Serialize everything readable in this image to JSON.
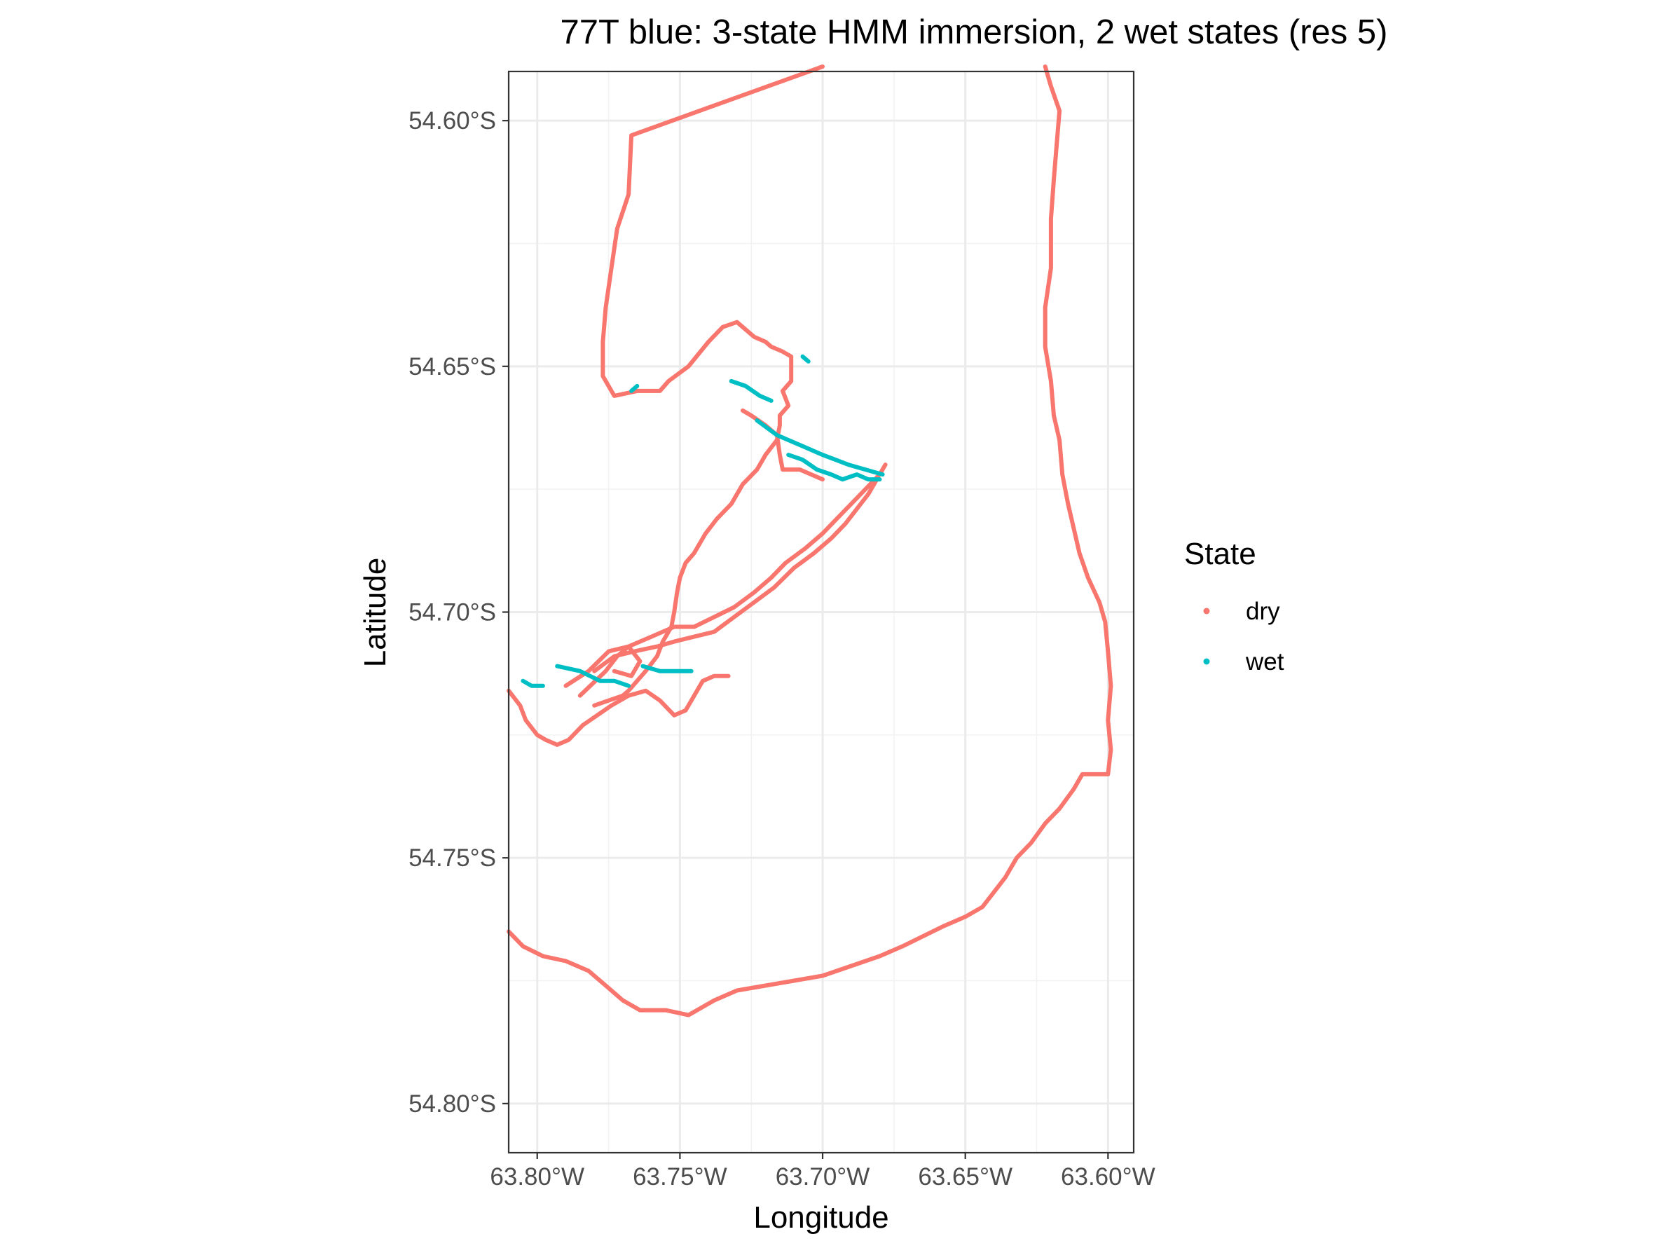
{
  "chart_data": {
    "type": "scatter",
    "title": "77T blue: 3-state HMM immersion, 2 wet states (res 5)",
    "xlabel": "Longitude",
    "ylabel": "Latitude",
    "xlim": [
      -63.81,
      -63.591
    ],
    "ylim": [
      -54.81,
      -54.59
    ],
    "x_ticks": [
      {
        "value": -63.8,
        "label": "63.80°W"
      },
      {
        "value": -63.75,
        "label": "63.75°W"
      },
      {
        "value": -63.7,
        "label": "63.70°W"
      },
      {
        "value": -63.65,
        "label": "63.65°W"
      },
      {
        "value": -63.6,
        "label": "63.60°W"
      }
    ],
    "y_ticks": [
      {
        "value": -54.6,
        "label": "54.60°S"
      },
      {
        "value": -54.65,
        "label": "54.65°S"
      },
      {
        "value": -54.7,
        "label": "54.70°S"
      },
      {
        "value": -54.75,
        "label": "54.75°S"
      },
      {
        "value": -54.8,
        "label": "54.80°S"
      }
    ],
    "grid": true,
    "legend": {
      "title": "State",
      "position": "right"
    },
    "series": [
      {
        "name": "dry",
        "color": "#F8766D",
        "paths": [
          [
            [
              -63.7,
              -54.589
            ],
            [
              -63.767,
              -54.603
            ],
            [
              -63.768,
              -54.615
            ],
            [
              -63.772,
              -54.622
            ],
            [
              -63.774,
              -54.63
            ],
            [
              -63.776,
              -54.638
            ],
            [
              -63.777,
              -54.645
            ],
            [
              -63.777,
              -54.652
            ],
            [
              -63.773,
              -54.656
            ],
            [
              -63.765,
              -54.655
            ],
            [
              -63.757,
              -54.655
            ],
            [
              -63.754,
              -54.653
            ],
            [
              -63.747,
              -54.65
            ],
            [
              -63.74,
              -54.645
            ],
            [
              -63.735,
              -54.642
            ],
            [
              -63.73,
              -54.641
            ],
            [
              -63.728,
              -54.642
            ],
            [
              -63.724,
              -54.644
            ],
            [
              -63.72,
              -54.645
            ],
            [
              -63.718,
              -54.646
            ],
            [
              -63.714,
              -54.647
            ],
            [
              -63.711,
              -54.648
            ],
            [
              -63.711,
              -54.653
            ],
            [
              -63.714,
              -54.655
            ],
            [
              -63.712,
              -54.658
            ],
            [
              -63.715,
              -54.66
            ],
            [
              -63.715,
              -54.662
            ],
            [
              -63.716,
              -54.665
            ],
            [
              -63.72,
              -54.668
            ],
            [
              -63.723,
              -54.671
            ],
            [
              -63.728,
              -54.674
            ],
            [
              -63.732,
              -54.678
            ],
            [
              -63.737,
              -54.681
            ],
            [
              -63.741,
              -54.684
            ],
            [
              -63.745,
              -54.688
            ],
            [
              -63.748,
              -54.69
            ],
            [
              -63.75,
              -54.693
            ],
            [
              -63.751,
              -54.696
            ],
            [
              -63.752,
              -54.7
            ],
            [
              -63.753,
              -54.703
            ],
            [
              -63.756,
              -54.706
            ],
            [
              -63.758,
              -54.709
            ],
            [
              -63.762,
              -54.712
            ],
            [
              -63.765,
              -54.714
            ],
            [
              -63.768,
              -54.716
            ],
            [
              -63.77,
              -54.717
            ],
            [
              -63.775,
              -54.718
            ],
            [
              -63.78,
              -54.719
            ]
          ],
          [
            [
              -63.81,
              -54.716
            ],
            [
              -63.806,
              -54.719
            ],
            [
              -63.804,
              -54.722
            ],
            [
              -63.8,
              -54.725
            ],
            [
              -63.797,
              -54.726
            ],
            [
              -63.793,
              -54.727
            ],
            [
              -63.789,
              -54.726
            ],
            [
              -63.784,
              -54.723
            ],
            [
              -63.779,
              -54.721
            ],
            [
              -63.774,
              -54.719
            ],
            [
              -63.768,
              -54.717
            ],
            [
              -63.762,
              -54.716
            ],
            [
              -63.757,
              -54.718
            ],
            [
              -63.752,
              -54.721
            ],
            [
              -63.748,
              -54.72
            ],
            [
              -63.746,
              -54.718
            ],
            [
              -63.744,
              -54.716
            ],
            [
              -63.742,
              -54.714
            ],
            [
              -63.738,
              -54.713
            ],
            [
              -63.733,
              -54.713
            ]
          ],
          [
            [
              -63.79,
              -54.715
            ],
            [
              -63.782,
              -54.712
            ],
            [
              -63.775,
              -54.708
            ],
            [
              -63.768,
              -54.707
            ],
            [
              -63.76,
              -54.705
            ],
            [
              -63.752,
              -54.703
            ],
            [
              -63.745,
              -54.703
            ],
            [
              -63.738,
              -54.701
            ],
            [
              -63.731,
              -54.699
            ],
            [
              -63.724,
              -54.696
            ],
            [
              -63.718,
              -54.693
            ],
            [
              -63.713,
              -54.69
            ],
            [
              -63.706,
              -54.687
            ],
            [
              -63.7,
              -54.684
            ],
            [
              -63.695,
              -54.681
            ],
            [
              -63.69,
              -54.678
            ],
            [
              -63.685,
              -54.675
            ],
            [
              -63.68,
              -54.672
            ],
            [
              -63.678,
              -54.67
            ]
          ],
          [
            [
              -63.78,
              -54.712
            ],
            [
              -63.773,
              -54.709
            ],
            [
              -63.766,
              -54.708
            ],
            [
              -63.758,
              -54.707
            ],
            [
              -63.752,
              -54.706
            ],
            [
              -63.745,
              -54.705
            ],
            [
              -63.738,
              -54.704
            ],
            [
              -63.731,
              -54.701
            ],
            [
              -63.724,
              -54.698
            ],
            [
              -63.717,
              -54.695
            ],
            [
              -63.71,
              -54.691
            ],
            [
              -63.703,
              -54.688
            ],
            [
              -63.697,
              -54.685
            ],
            [
              -63.692,
              -54.682
            ],
            [
              -63.688,
              -54.679
            ],
            [
              -63.684,
              -54.676
            ],
            [
              -63.681,
              -54.673
            ]
          ],
          [
            [
              -63.7,
              -54.673
            ],
            [
              -63.708,
              -54.671
            ],
            [
              -63.714,
              -54.671
            ],
            [
              -63.715,
              -54.668
            ],
            [
              -63.716,
              -54.664
            ],
            [
              -63.72,
              -54.662
            ],
            [
              -63.725,
              -54.66
            ],
            [
              -63.728,
              -54.659
            ]
          ],
          [
            [
              -63.81,
              -54.765
            ],
            [
              -63.805,
              -54.768
            ],
            [
              -63.798,
              -54.77
            ],
            [
              -63.79,
              -54.771
            ],
            [
              -63.782,
              -54.773
            ],
            [
              -63.776,
              -54.776
            ],
            [
              -63.77,
              -54.779
            ],
            [
              -63.764,
              -54.781
            ],
            [
              -63.755,
              -54.781
            ],
            [
              -63.747,
              -54.782
            ],
            [
              -63.738,
              -54.779
            ],
            [
              -63.73,
              -54.777
            ],
            [
              -63.72,
              -54.776
            ],
            [
              -63.71,
              -54.775
            ],
            [
              -63.7,
              -54.774
            ],
            [
              -63.69,
              -54.772
            ],
            [
              -63.68,
              -54.77
            ],
            [
              -63.672,
              -54.768
            ],
            [
              -63.665,
              -54.766
            ],
            [
              -63.658,
              -54.764
            ],
            [
              -63.65,
              -54.762
            ],
            [
              -63.644,
              -54.76
            ],
            [
              -63.64,
              -54.757
            ],
            [
              -63.636,
              -54.754
            ],
            [
              -63.632,
              -54.75
            ],
            [
              -63.627,
              -54.747
            ],
            [
              -63.622,
              -54.743
            ],
            [
              -63.617,
              -54.74
            ],
            [
              -63.612,
              -54.736
            ],
            [
              -63.609,
              -54.733
            ],
            [
              -63.6,
              -54.733
            ],
            [
              -63.599,
              -54.728
            ],
            [
              -63.6,
              -54.722
            ],
            [
              -63.599,
              -54.715
            ],
            [
              -63.6,
              -54.708
            ],
            [
              -63.601,
              -54.702
            ],
            [
              -63.603,
              -54.698
            ],
            [
              -63.607,
              -54.693
            ],
            [
              -63.61,
              -54.688
            ],
            [
              -63.612,
              -54.683
            ],
            [
              -63.614,
              -54.678
            ],
            [
              -63.616,
              -54.672
            ],
            [
              -63.617,
              -54.665
            ],
            [
              -63.619,
              -54.66
            ],
            [
              -63.62,
              -54.653
            ],
            [
              -63.622,
              -54.646
            ],
            [
              -63.622,
              -54.638
            ],
            [
              -63.62,
              -54.63
            ],
            [
              -63.62,
              -54.62
            ],
            [
              -63.619,
              -54.612
            ],
            [
              -63.618,
              -54.605
            ],
            [
              -63.617,
              -54.598
            ],
            [
              -63.62,
              -54.593
            ],
            [
              -63.622,
              -54.589
            ]
          ],
          [
            [
              -63.785,
              -54.717
            ],
            [
              -63.776,
              -54.712
            ],
            [
              -63.772,
              -54.709
            ],
            [
              -63.768,
              -54.707
            ],
            [
              -63.764,
              -54.71
            ],
            [
              -63.767,
              -54.713
            ],
            [
              -63.773,
              -54.712
            ]
          ]
        ]
      },
      {
        "name": "wet",
        "color": "#00BFC4",
        "paths": [
          [
            [
              -63.805,
              -54.714
            ],
            [
              -63.802,
              -54.715
            ],
            [
              -63.798,
              -54.715
            ]
          ],
          [
            [
              -63.793,
              -54.711
            ],
            [
              -63.785,
              -54.712
            ],
            [
              -63.778,
              -54.714
            ],
            [
              -63.773,
              -54.714
            ],
            [
              -63.768,
              -54.715
            ]
          ],
          [
            [
              -63.763,
              -54.711
            ],
            [
              -63.757,
              -54.712
            ],
            [
              -63.753,
              -54.712
            ],
            [
              -63.746,
              -54.712
            ]
          ],
          [
            [
              -63.723,
              -54.661
            ],
            [
              -63.716,
              -54.664
            ],
            [
              -63.708,
              -54.666
            ],
            [
              -63.7,
              -54.668
            ],
            [
              -63.691,
              -54.67
            ],
            [
              -63.685,
              -54.671
            ],
            [
              -63.679,
              -54.672
            ]
          ],
          [
            [
              -63.712,
              -54.668
            ],
            [
              -63.707,
              -54.669
            ],
            [
              -63.702,
              -54.671
            ],
            [
              -63.697,
              -54.672
            ],
            [
              -63.693,
              -54.673
            ],
            [
              -63.688,
              -54.672
            ],
            [
              -63.684,
              -54.673
            ],
            [
              -63.68,
              -54.673
            ]
          ],
          [
            [
              -63.732,
              -54.653
            ],
            [
              -63.727,
              -54.654
            ],
            [
              -63.722,
              -54.656
            ],
            [
              -63.718,
              -54.657
            ]
          ],
          [
            [
              -63.765,
              -54.654
            ],
            [
              -63.767,
              -54.655
            ]
          ],
          [
            [
              -63.705,
              -54.649
            ],
            [
              -63.707,
              -54.648
            ]
          ]
        ]
      }
    ]
  }
}
